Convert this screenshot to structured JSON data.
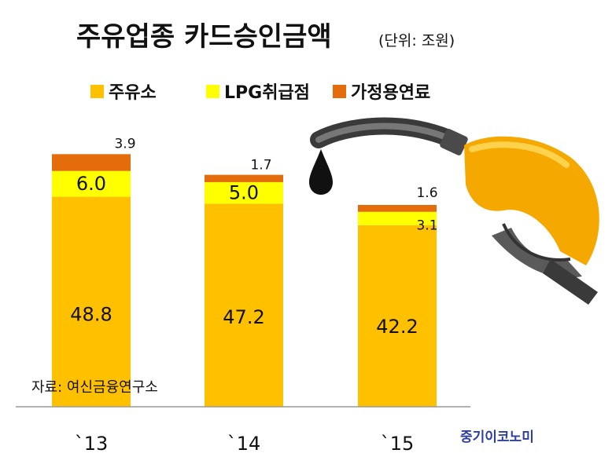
{
  "title": "주유업종 카드승인금액",
  "unit": "(단위: 조원)",
  "source": "자료: 여신금융연구소",
  "brand": "중기이코노미",
  "colors": {
    "gas_station": "#FFC000",
    "lpg": "#FFFF00",
    "home_fuel": "#E46C0A",
    "pump": "#F5A800",
    "hose": "#555555"
  },
  "chart_data": {
    "type": "bar",
    "stacked": true,
    "categories": [
      "`13",
      "`14",
      "`15"
    ],
    "series": [
      {
        "name": "주유소",
        "values": [
          48.8,
          47.2,
          42.2
        ]
      },
      {
        "name": "LPG취급점",
        "values": [
          6.0,
          5.0,
          3.1
        ]
      },
      {
        "name": "가정용연료",
        "values": [
          3.9,
          1.7,
          1.6
        ]
      }
    ],
    "value_labels": [
      [
        "48.8",
        "47.2",
        "42.2"
      ],
      [
        "6.0",
        "5.0",
        "3.1"
      ],
      [
        "3.9",
        "1.7",
        "1.6"
      ]
    ],
    "ylim": [
      0,
      60
    ],
    "grid": false,
    "legend": "top"
  }
}
